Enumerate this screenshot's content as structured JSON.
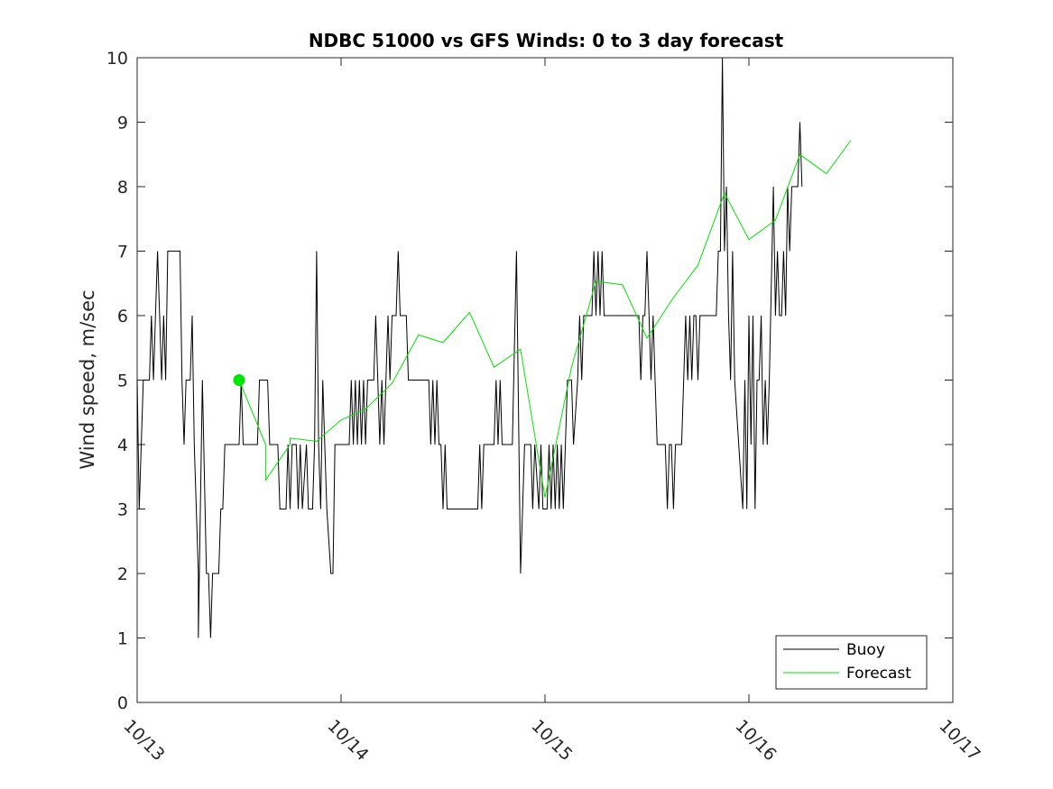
{
  "chart_data": {
    "type": "line",
    "title": "NDBC 51000 vs GFS Winds: 0 to 3 day forecast",
    "xlabel": "",
    "ylabel": "Wind speed, m/sec",
    "xlim": [
      0,
      4
    ],
    "ylim": [
      0,
      10
    ],
    "x_ticks": [
      {
        "value": 0,
        "label": "10/13"
      },
      {
        "value": 1,
        "label": "10/14"
      },
      {
        "value": 2,
        "label": "10/15"
      },
      {
        "value": 3,
        "label": "10/16"
      },
      {
        "value": 4,
        "label": "10/17"
      }
    ],
    "y_ticks": [
      0,
      1,
      2,
      3,
      4,
      5,
      6,
      7,
      8,
      9,
      10
    ],
    "grid": false,
    "legend_position": "bottom-right",
    "series": [
      {
        "name": "Buoy",
        "color": "#000000",
        "points": [
          [
            0.0,
            5
          ],
          [
            0.01,
            3
          ],
          [
            0.03,
            5
          ],
          [
            0.06,
            5
          ],
          [
            0.07,
            6
          ],
          [
            0.08,
            5
          ],
          [
            0.09,
            6
          ],
          [
            0.1,
            7
          ],
          [
            0.11,
            6
          ],
          [
            0.12,
            5
          ],
          [
            0.13,
            6
          ],
          [
            0.14,
            5
          ],
          [
            0.15,
            7
          ],
          [
            0.21,
            7
          ],
          [
            0.22,
            5
          ],
          [
            0.23,
            4
          ],
          [
            0.24,
            5
          ],
          [
            0.26,
            5
          ],
          [
            0.27,
            6
          ],
          [
            0.28,
            4
          ],
          [
            0.3,
            2
          ],
          [
            0.3,
            1
          ],
          [
            0.32,
            5
          ],
          [
            0.34,
            2
          ],
          [
            0.35,
            2
          ],
          [
            0.36,
            1
          ],
          [
            0.37,
            2
          ],
          [
            0.4,
            2
          ],
          [
            0.41,
            3
          ],
          [
            0.42,
            3
          ],
          [
            0.43,
            4
          ],
          [
            0.5,
            4
          ],
          [
            0.51,
            5
          ],
          [
            0.52,
            4
          ],
          [
            0.59,
            4
          ],
          [
            0.6,
            5
          ],
          [
            0.64,
            5
          ],
          [
            0.65,
            4
          ],
          [
            0.69,
            4
          ],
          [
            0.7,
            3
          ],
          [
            0.73,
            3
          ],
          [
            0.74,
            4
          ],
          [
            0.75,
            3
          ],
          [
            0.76,
            4
          ],
          [
            0.78,
            4
          ],
          [
            0.79,
            3
          ],
          [
            0.8,
            4
          ],
          [
            0.81,
            3
          ],
          [
            0.83,
            4
          ],
          [
            0.84,
            3
          ],
          [
            0.86,
            3
          ],
          [
            0.87,
            4
          ],
          [
            0.88,
            7
          ],
          [
            0.89,
            4
          ],
          [
            0.9,
            3
          ],
          [
            0.91,
            5
          ],
          [
            0.92,
            4
          ],
          [
            0.93,
            3
          ],
          [
            0.95,
            2
          ],
          [
            0.96,
            2
          ],
          [
            0.97,
            4
          ],
          [
            1.04,
            4
          ],
          [
            1.05,
            5
          ],
          [
            1.06,
            4
          ],
          [
            1.07,
            5
          ],
          [
            1.08,
            4
          ],
          [
            1.09,
            5
          ],
          [
            1.1,
            4
          ],
          [
            1.11,
            5
          ],
          [
            1.12,
            4
          ],
          [
            1.13,
            5
          ],
          [
            1.16,
            5
          ],
          [
            1.17,
            6
          ],
          [
            1.18,
            5
          ],
          [
            1.19,
            4
          ],
          [
            1.2,
            5
          ],
          [
            1.21,
            4
          ],
          [
            1.22,
            5
          ],
          [
            1.23,
            6
          ],
          [
            1.24,
            5
          ],
          [
            1.25,
            6
          ],
          [
            1.27,
            6
          ],
          [
            1.28,
            7
          ],
          [
            1.29,
            6
          ],
          [
            1.32,
            6
          ],
          [
            1.33,
            5
          ],
          [
            1.43,
            5
          ],
          [
            1.44,
            4
          ],
          [
            1.45,
            5
          ],
          [
            1.46,
            4
          ],
          [
            1.47,
            5
          ],
          [
            1.48,
            4
          ],
          [
            1.49,
            4
          ],
          [
            1.5,
            3
          ],
          [
            1.51,
            4
          ],
          [
            1.52,
            3
          ],
          [
            1.67,
            3
          ],
          [
            1.68,
            4
          ],
          [
            1.69,
            3
          ],
          [
            1.7,
            4
          ],
          [
            1.75,
            4
          ],
          [
            1.76,
            5
          ],
          [
            1.77,
            4
          ],
          [
            1.78,
            5
          ],
          [
            1.79,
            4
          ],
          [
            1.84,
            4
          ],
          [
            1.86,
            7
          ],
          [
            1.88,
            2
          ],
          [
            1.9,
            4
          ],
          [
            1.93,
            4
          ],
          [
            1.94,
            3
          ],
          [
            1.95,
            4
          ],
          [
            1.97,
            3
          ],
          [
            1.98,
            4
          ],
          [
            1.99,
            3
          ],
          [
            2.01,
            3
          ],
          [
            2.02,
            4
          ],
          [
            2.03,
            3
          ],
          [
            2.04,
            4
          ],
          [
            2.05,
            3
          ],
          [
            2.06,
            4
          ],
          [
            2.07,
            3
          ],
          [
            2.08,
            4
          ],
          [
            2.09,
            3
          ],
          [
            2.1,
            4
          ],
          [
            2.11,
            5
          ],
          [
            2.13,
            5
          ],
          [
            2.14,
            4
          ],
          [
            2.16,
            5
          ],
          [
            2.17,
            6
          ],
          [
            2.18,
            5
          ],
          [
            2.19,
            6
          ],
          [
            2.23,
            6
          ],
          [
            2.24,
            7
          ],
          [
            2.25,
            6
          ],
          [
            2.26,
            7
          ],
          [
            2.27,
            6
          ],
          [
            2.28,
            7
          ],
          [
            2.29,
            6
          ],
          [
            2.46,
            6
          ],
          [
            2.47,
            5
          ],
          [
            2.48,
            6
          ],
          [
            2.49,
            6
          ],
          [
            2.5,
            7
          ],
          [
            2.51,
            6
          ],
          [
            2.52,
            5
          ],
          [
            2.53,
            6
          ],
          [
            2.54,
            5
          ],
          [
            2.55,
            4
          ],
          [
            2.59,
            4
          ],
          [
            2.6,
            3
          ],
          [
            2.61,
            4
          ],
          [
            2.62,
            4
          ],
          [
            2.63,
            3
          ],
          [
            2.64,
            4
          ],
          [
            2.67,
            4
          ],
          [
            2.68,
            5
          ],
          [
            2.69,
            6
          ],
          [
            2.7,
            5
          ],
          [
            2.71,
            6
          ],
          [
            2.72,
            5
          ],
          [
            2.73,
            6
          ],
          [
            2.74,
            6
          ],
          [
            2.75,
            5
          ],
          [
            2.76,
            6
          ],
          [
            2.84,
            6
          ],
          [
            2.85,
            7
          ],
          [
            2.86,
            7
          ],
          [
            2.87,
            10
          ],
          [
            2.88,
            7
          ],
          [
            2.89,
            8
          ],
          [
            2.9,
            6
          ],
          [
            2.91,
            5
          ],
          [
            2.92,
            7
          ],
          [
            2.93,
            5
          ],
          [
            2.95,
            4
          ],
          [
            2.97,
            3
          ],
          [
            2.98,
            5
          ],
          [
            2.99,
            3
          ],
          [
            3.0,
            6
          ],
          [
            3.01,
            4
          ],
          [
            3.02,
            6
          ],
          [
            3.03,
            3
          ],
          [
            3.04,
            5
          ],
          [
            3.05,
            5
          ],
          [
            3.06,
            6
          ],
          [
            3.07,
            4
          ],
          [
            3.08,
            5
          ],
          [
            3.09,
            4
          ],
          [
            3.1,
            5
          ],
          [
            3.12,
            8
          ],
          [
            3.13,
            6
          ],
          [
            3.14,
            7
          ],
          [
            3.15,
            6
          ],
          [
            3.16,
            6
          ],
          [
            3.17,
            7
          ],
          [
            3.18,
            6
          ],
          [
            3.19,
            8
          ],
          [
            3.2,
            7
          ],
          [
            3.21,
            8
          ],
          [
            3.24,
            8
          ],
          [
            3.25,
            9
          ],
          [
            3.26,
            8
          ]
        ]
      },
      {
        "name": "Forecast",
        "color": "#00e600",
        "points": [
          [
            0.5,
            5.0
          ],
          [
            0.63,
            4.0
          ],
          [
            0.63,
            3.45
          ],
          [
            0.75,
            4.0
          ],
          [
            0.75,
            4.1
          ],
          [
            0.88,
            4.05
          ],
          [
            1.0,
            4.38
          ],
          [
            1.12,
            4.55
          ],
          [
            1.25,
            4.95
          ],
          [
            1.38,
            5.7
          ],
          [
            1.5,
            5.58
          ],
          [
            1.63,
            6.05
          ],
          [
            1.75,
            5.2
          ],
          [
            1.88,
            5.48
          ],
          [
            2.0,
            3.18
          ],
          [
            2.13,
            5.2
          ],
          [
            2.25,
            6.53
          ],
          [
            2.38,
            6.48
          ],
          [
            2.5,
            5.65
          ],
          [
            2.63,
            6.28
          ],
          [
            2.75,
            6.78
          ],
          [
            2.88,
            7.9
          ],
          [
            3.0,
            7.18
          ],
          [
            3.13,
            7.48
          ],
          [
            3.25,
            8.5
          ],
          [
            3.38,
            8.2
          ],
          [
            3.5,
            8.72
          ]
        ],
        "start_marker": [
          0.5,
          5.0
        ]
      }
    ]
  }
}
